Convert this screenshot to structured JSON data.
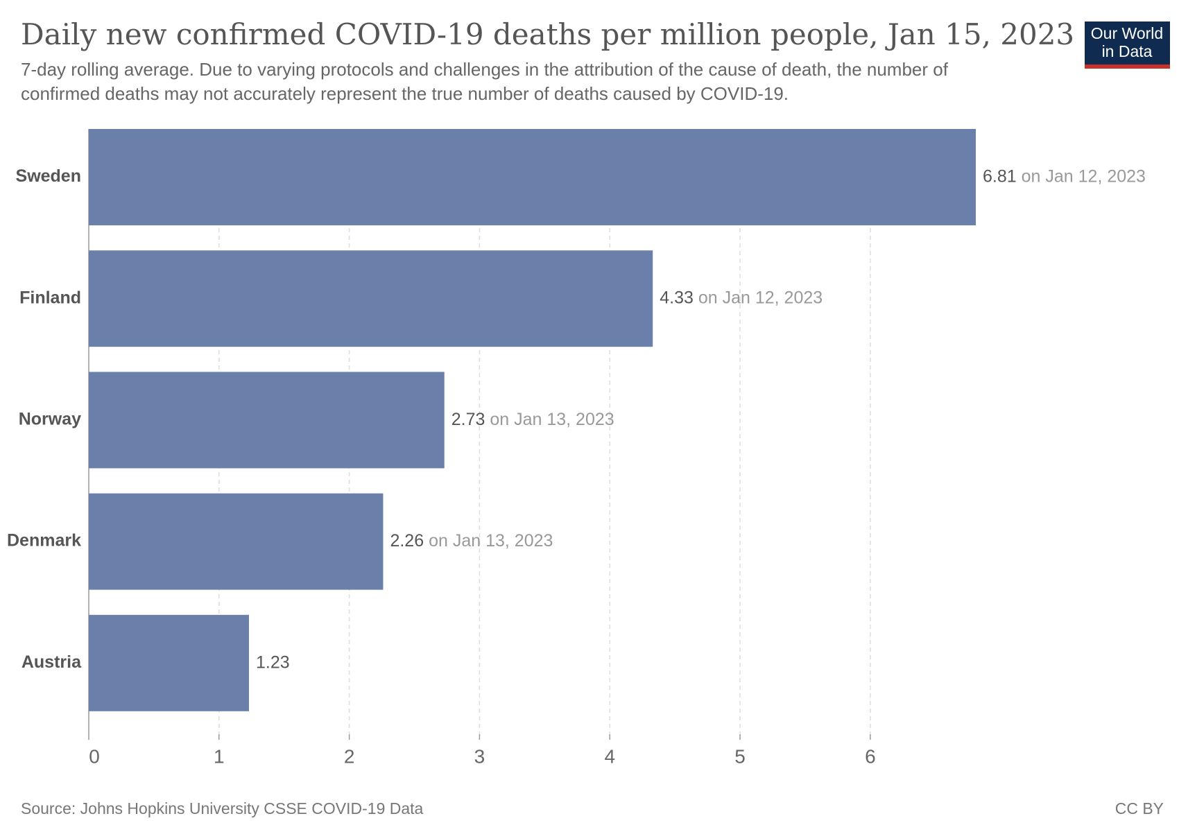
{
  "chart_data": {
    "type": "bar",
    "orientation": "horizontal",
    "title": "Daily new confirmed COVID-19 deaths per million people, Jan 15, 2023",
    "subtitle": [
      "7-day rolling average. Due to varying protocols and challenges in the attribution of the cause of death, the number of",
      "confirmed deaths may not accurately represent the true number of deaths caused by COVID-19."
    ],
    "categories": [
      "Sweden",
      "Finland",
      "Norway",
      "Denmark",
      "Austria"
    ],
    "values": [
      6.81,
      4.33,
      2.73,
      2.26,
      1.23
    ],
    "dates": [
      "on Jan 12, 2023",
      "on Jan 12, 2023",
      "on Jan 13, 2023",
      "on Jan 13, 2023",
      null
    ],
    "color": "#6a80aa",
    "xlim": [
      0,
      6.81
    ],
    "xticks": [
      0,
      1,
      2,
      3,
      4,
      5,
      6
    ],
    "grid": true,
    "source": "Source: Johns Hopkins University CSSE COVID-19 Data",
    "license": "CC BY",
    "logo": [
      "Our World",
      "in Data"
    ]
  }
}
